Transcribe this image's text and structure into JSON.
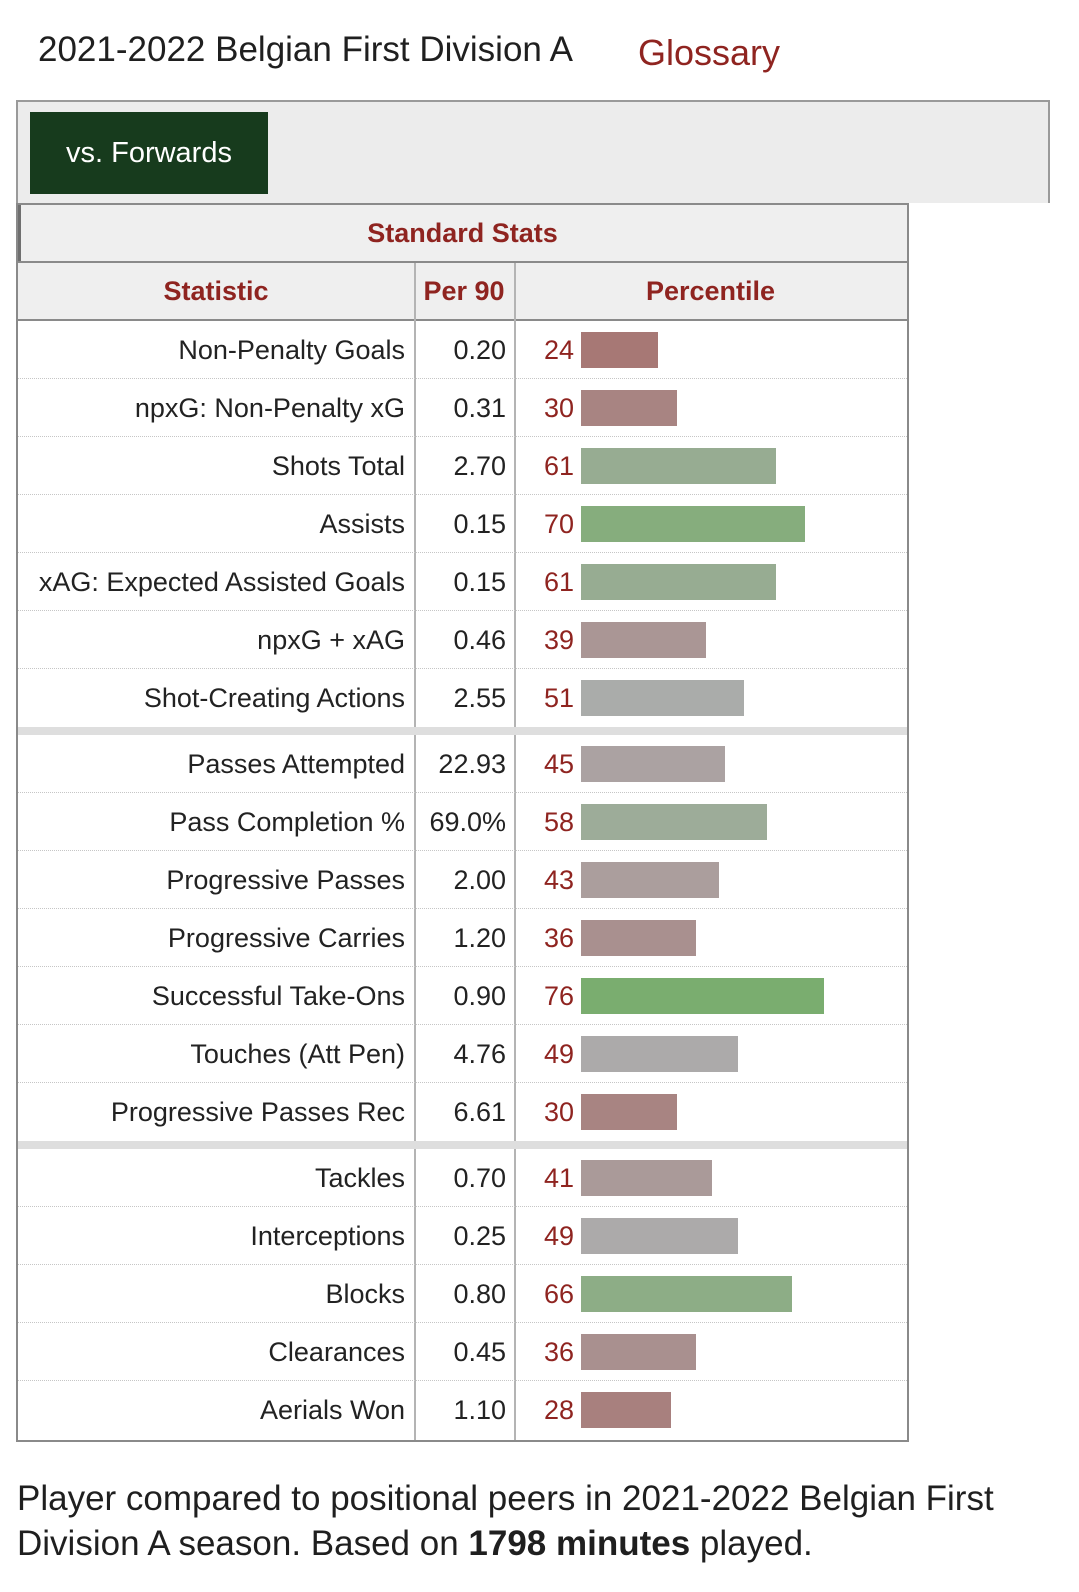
{
  "header": {
    "title": "2021-2022 Belgian First Division A",
    "glossary_label": "Glossary"
  },
  "filter": {
    "active_label": "vs. Forwards"
  },
  "table": {
    "caption": "Standard Stats",
    "columns": [
      "Statistic",
      "Per 90",
      "Percentile"
    ],
    "sections": [
      [
        {
          "stat": "Non-Penalty Goals",
          "per90": "0.20",
          "percentile": 24
        },
        {
          "stat": "npxG: Non-Penalty xG",
          "per90": "0.31",
          "percentile": 30
        },
        {
          "stat": "Shots Total",
          "per90": "2.70",
          "percentile": 61
        },
        {
          "stat": "Assists",
          "per90": "0.15",
          "percentile": 70
        },
        {
          "stat": "xAG: Expected Assisted Goals",
          "per90": "0.15",
          "percentile": 61
        },
        {
          "stat": "npxG + xAG",
          "per90": "0.46",
          "percentile": 39
        },
        {
          "stat": "Shot-Creating Actions",
          "per90": "2.55",
          "percentile": 51
        }
      ],
      [
        {
          "stat": "Passes Attempted",
          "per90": "22.93",
          "percentile": 45
        },
        {
          "stat": "Pass Completion %",
          "per90": "69.0%",
          "percentile": 58
        },
        {
          "stat": "Progressive Passes",
          "per90": "2.00",
          "percentile": 43
        },
        {
          "stat": "Progressive Carries",
          "per90": "1.20",
          "percentile": 36
        },
        {
          "stat": "Successful Take-Ons",
          "per90": "0.90",
          "percentile": 76
        },
        {
          "stat": "Touches (Att Pen)",
          "per90": "4.76",
          "percentile": 49
        },
        {
          "stat": "Progressive Passes Rec",
          "per90": "6.61",
          "percentile": 30
        }
      ],
      [
        {
          "stat": "Tackles",
          "per90": "0.70",
          "percentile": 41
        },
        {
          "stat": "Interceptions",
          "per90": "0.25",
          "percentile": 49
        },
        {
          "stat": "Blocks",
          "per90": "0.80",
          "percentile": 66
        },
        {
          "stat": "Clearances",
          "per90": "0.45",
          "percentile": 36
        },
        {
          "stat": "Aerials Won",
          "per90": "1.10",
          "percentile": 28
        }
      ]
    ]
  },
  "colors": {
    "accent": "#8f2420",
    "filter_bg": "#173b1d",
    "bar_low": "#a6706d",
    "bar_mid": "#acacac",
    "bar_high": "#7aad6f"
  },
  "footer": {
    "text_before": "Player compared to positional peers in 2021-2022 Belgian First Division A season. Based on ",
    "minutes_bold": "1798 minutes",
    "text_after": " played."
  }
}
